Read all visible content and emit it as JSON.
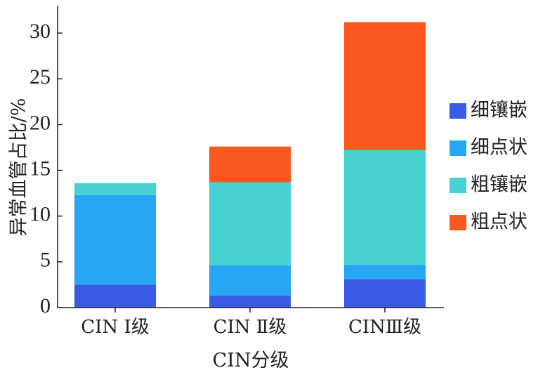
{
  "chart_data": {
    "type": "bar",
    "stacked": true,
    "xlabel": "CIN分级",
    "ylabel": "异常血管占比/%",
    "categories": [
      "CIN Ⅰ级",
      "CIN Ⅱ级",
      "CINⅢ级"
    ],
    "ylim": [
      0,
      33
    ],
    "yticks": [
      0,
      5,
      10,
      15,
      20,
      25,
      30
    ],
    "grid": false,
    "legend_position": "right",
    "series": [
      {
        "name": "细镶嵌",
        "color": "#3a5ae8",
        "values": [
          2.5,
          1.3,
          3.1
        ]
      },
      {
        "name": "细点状",
        "color": "#27a6f5",
        "values": [
          9.8,
          3.3,
          1.6
        ]
      },
      {
        "name": "粗镶嵌",
        "color": "#47d1d1",
        "values": [
          1.3,
          9.1,
          12.5
        ]
      },
      {
        "name": "粗点状",
        "color": "#fb5820",
        "values": [
          0,
          3.9,
          14.0
        ]
      }
    ]
  }
}
